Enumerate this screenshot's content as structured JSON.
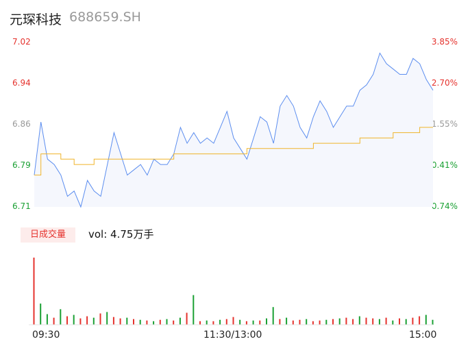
{
  "header": {
    "name": "元琛科技",
    "code": "688659.SH"
  },
  "colors": {
    "price_line": "#5b8def",
    "avg_line": "#f0b429",
    "up": "#e5322d",
    "down": "#1aa033",
    "neutral": "#999999",
    "fill": "#f5f7fd"
  },
  "price_axis": {
    "labels": [
      "7.02",
      "6.94",
      "6.86",
      "6.79",
      "6.71"
    ],
    "label_colors": [
      "up",
      "up",
      "neutral",
      "down",
      "down"
    ]
  },
  "pct_axis": {
    "labels": [
      "3.85%",
      "2.70%",
      "1.55%",
      "0.41%",
      "-0.74%"
    ],
    "label_colors": [
      "up",
      "up",
      "neutral",
      "down",
      "down"
    ]
  },
  "volume": {
    "badge": "日成交量",
    "text": "vol: 4.75万手"
  },
  "time_axis": [
    "09:30",
    "11:30/13:00",
    "15:00"
  ],
  "chart_data": {
    "type": "line",
    "ylim": [
      6.71,
      7.02
    ],
    "x": [
      0,
      4,
      8,
      12,
      16,
      20,
      24,
      28,
      32,
      36,
      40,
      44,
      48,
      52,
      56,
      60,
      64,
      68,
      72,
      76,
      80,
      84,
      88,
      92,
      96,
      100,
      104,
      108,
      112,
      116,
      120,
      124,
      128,
      132,
      136,
      140,
      144,
      148,
      152,
      156,
      160,
      164,
      168,
      172,
      176,
      180,
      184,
      188,
      192,
      196,
      200,
      204,
      208,
      212,
      216,
      220,
      224,
      228,
      232,
      236,
      240
    ],
    "series": [
      {
        "values": [
          6.77,
          6.87,
          6.8,
          6.79,
          6.77,
          6.73,
          6.74,
          6.71,
          6.76,
          6.74,
          6.73,
          6.79,
          6.85,
          6.81,
          6.77,
          6.78,
          6.79,
          6.77,
          6.8,
          6.79,
          6.79,
          6.81,
          6.86,
          6.83,
          6.85,
          6.83,
          6.84,
          6.83,
          6.86,
          6.89,
          6.84,
          6.82,
          6.8,
          6.84,
          6.88,
          6.87,
          6.83,
          6.9,
          6.92,
          6.9,
          6.86,
          6.84,
          6.88,
          6.91,
          6.89,
          6.86,
          6.88,
          6.9,
          6.9,
          6.93,
          6.94,
          6.96,
          7.0,
          6.98,
          6.97,
          6.96,
          6.96,
          6.99,
          6.98,
          6.95,
          6.93
        ]
      },
      {
        "values": [
          6.77,
          6.81,
          6.81,
          6.81,
          6.8,
          6.8,
          6.79,
          6.79,
          6.79,
          6.8,
          6.8,
          6.8,
          6.8,
          6.8,
          6.8,
          6.8,
          6.8,
          6.8,
          6.8,
          6.8,
          6.8,
          6.81,
          6.81,
          6.81,
          6.81,
          6.81,
          6.81,
          6.81,
          6.81,
          6.81,
          6.81,
          6.81,
          6.82,
          6.82,
          6.82,
          6.82,
          6.82,
          6.82,
          6.82,
          6.82,
          6.82,
          6.82,
          6.83,
          6.83,
          6.83,
          6.83,
          6.83,
          6.83,
          6.83,
          6.84,
          6.84,
          6.84,
          6.84,
          6.84,
          6.85,
          6.85,
          6.85,
          6.85,
          6.86,
          6.86,
          6.86
        ]
      }
    ],
    "volume_x": [
      0,
      4,
      8,
      12,
      16,
      20,
      24,
      28,
      32,
      36,
      40,
      44,
      48,
      52,
      56,
      60,
      64,
      68,
      72,
      76,
      80,
      84,
      88,
      92,
      96,
      100,
      104,
      108,
      112,
      116,
      120,
      124,
      128,
      132,
      136,
      140,
      144,
      148,
      152,
      156,
      160,
      164,
      168,
      172,
      176,
      180,
      184,
      188,
      192,
      196,
      200,
      204,
      208,
      212,
      216,
      220,
      224,
      228,
      232,
      236,
      240
    ],
    "volume_values": [
      0.95,
      0.3,
      0.15,
      0.1,
      0.22,
      0.12,
      0.14,
      0.09,
      0.12,
      0.1,
      0.16,
      0.18,
      0.11,
      0.09,
      0.1,
      0.08,
      0.07,
      0.06,
      0.05,
      0.07,
      0.08,
      0.06,
      0.1,
      0.17,
      0.42,
      0.05,
      0.06,
      0.05,
      0.07,
      0.08,
      0.11,
      0.07,
      0.05,
      0.06,
      0.06,
      0.09,
      0.25,
      0.08,
      0.1,
      0.06,
      0.07,
      0.08,
      0.05,
      0.06,
      0.07,
      0.08,
      0.09,
      0.1,
      0.08,
      0.12,
      0.1,
      0.09,
      0.08,
      0.1,
      0.06,
      0.09,
      0.08,
      0.1,
      0.12,
      0.14,
      0.07
    ],
    "volume_colors": [
      "up",
      "down",
      "down",
      "up",
      "down",
      "up",
      "down",
      "up",
      "up",
      "down",
      "up",
      "down",
      "up",
      "up",
      "down",
      "up",
      "down",
      "up",
      "down",
      "up",
      "down",
      "up",
      "down",
      "up",
      "down",
      "up",
      "down",
      "up",
      "down",
      "up",
      "up",
      "down",
      "up",
      "down",
      "up",
      "down",
      "down",
      "up",
      "down",
      "up",
      "up",
      "down",
      "up",
      "up",
      "down",
      "up",
      "down",
      "up",
      "up",
      "down",
      "up",
      "up",
      "down",
      "up",
      "down",
      "up",
      "down",
      "up",
      "up",
      "down",
      "down"
    ]
  }
}
